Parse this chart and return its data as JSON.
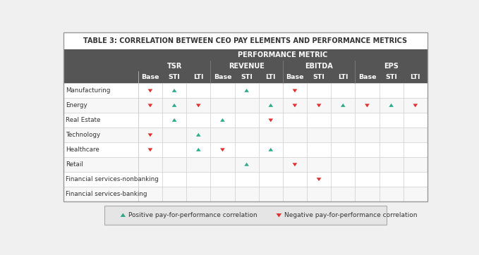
{
  "title": "TABLE 3: CORRELATION BETWEEN CEO PAY ELEMENTS AND PERFORMANCE METRICS",
  "title_color": "#333333",
  "title_bg": "#ffffff",
  "header_bg": "#555555",
  "header_color": "#ffffff",
  "pos_color": "#2bac8a",
  "neg_color": "#e03030",
  "performance_metric_label": "PERFORMANCE METRIC",
  "group_labels": [
    "TSR",
    "REVENUE",
    "EBITDA",
    "EPS"
  ],
  "col_labels": [
    "Base",
    "STI",
    "LTI",
    "Base",
    "STI",
    "LTI",
    "Base",
    "STI",
    "LTI",
    "Base",
    "STI",
    "LTI"
  ],
  "row_labels": [
    "Manufacturing",
    "Energy",
    "Real Estate",
    "Technology",
    "Healthcare",
    "Retail",
    "Financial services-nonbanking",
    "Financial services-banking"
  ],
  "arrows": {
    "Manufacturing": [
      "N",
      "P",
      "",
      "",
      "P",
      "",
      "N",
      "",
      "",
      "",
      "",
      ""
    ],
    "Energy": [
      "N",
      "P",
      "N",
      "",
      "",
      "P",
      "N",
      "N",
      "P",
      "N",
      "P",
      "N"
    ],
    "Real Estate": [
      "",
      "P",
      "",
      "P",
      "",
      "N",
      "",
      "",
      "",
      "",
      "",
      ""
    ],
    "Technology": [
      "N",
      "",
      "P",
      "",
      "",
      "",
      "",
      "",
      "",
      "",
      "",
      ""
    ],
    "Healthcare": [
      "N",
      "",
      "P",
      "N",
      "",
      "P",
      "",
      "",
      "",
      "",
      "",
      ""
    ],
    "Retail": [
      "",
      "",
      "",
      "",
      "P",
      "",
      "N",
      "",
      "",
      "",
      "",
      ""
    ],
    "Financial services-nonbanking": [
      "",
      "",
      "",
      "",
      "",
      "",
      "",
      "N",
      "",
      "",
      "",
      ""
    ],
    "Financial services-banking": [
      "",
      "",
      "",
      "",
      "",
      "",
      "",
      "",
      "",
      "",
      "",
      ""
    ]
  },
  "legend_pos_label": "Positive pay-for-performance correlation",
  "legend_neg_label": "Negative pay-for-performance correlation",
  "outer_bg": "#f0f0f0",
  "table_bg": "#ffffff",
  "row_alt_bg": "#f7f7f7",
  "grid_color": "#cccccc",
  "border_color": "#999999"
}
